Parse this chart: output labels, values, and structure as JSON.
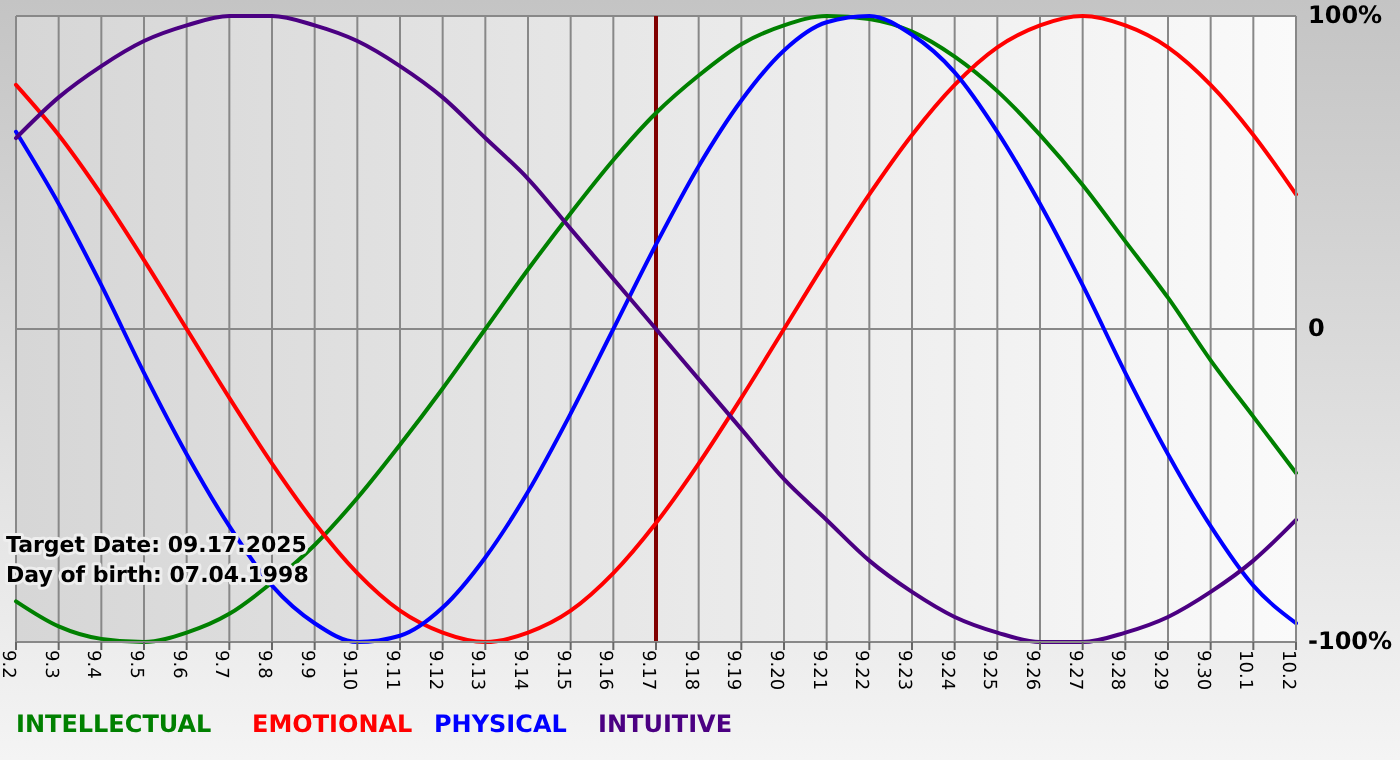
{
  "chart_data": {
    "type": "line",
    "categories": [
      "9.2",
      "9.3",
      "9.4",
      "9.5",
      "9.6",
      "9.7",
      "9.8",
      "9.9",
      "9.10",
      "9.11",
      "9.12",
      "9.13",
      "9.14",
      "9.15",
      "9.16",
      "9.17",
      "9.18",
      "9.19",
      "9.20",
      "9.21",
      "9.22",
      "9.23",
      "9.24",
      "9.25",
      "9.26",
      "9.27",
      "9.28",
      "9.29",
      "9.30",
      "10.1",
      "10.2"
    ],
    "series": [
      {
        "name": "INTELLECTUAL",
        "color": "#008000",
        "values": [
          -87,
          -95,
          -99,
          -100,
          -97,
          -91,
          -81,
          -69,
          -54,
          -37,
          -19,
          0,
          19,
          37,
          54,
          69,
          81,
          91,
          97,
          100,
          99,
          95,
          87,
          76,
          62,
          46,
          28,
          10,
          -10,
          -28,
          -46
        ]
      },
      {
        "name": "EMOTIONAL",
        "color": "#ff0000",
        "values": [
          78,
          62,
          43,
          22,
          0,
          -22,
          -43,
          -62,
          -78,
          -90,
          -97,
          -100,
          -97,
          -90,
          -78,
          -62,
          -43,
          -22,
          0,
          22,
          43,
          62,
          78,
          90,
          97,
          100,
          97,
          90,
          78,
          62,
          43
        ]
      },
      {
        "name": "PHYSICAL",
        "color": "#0000ff",
        "values": [
          63,
          40,
          14,
          -14,
          -40,
          -63,
          -82,
          -94,
          -100,
          -98,
          -89,
          -73,
          -52,
          -27,
          0,
          27,
          52,
          73,
          89,
          98,
          100,
          94,
          82,
          63,
          40,
          14,
          -14,
          -40,
          -63,
          -82,
          -94
        ]
      },
      {
        "name": "INTUITIVE",
        "color": "#4b0082",
        "values": [
          61,
          74,
          84,
          92,
          97,
          100,
          100,
          97,
          92,
          84,
          74,
          61,
          48,
          32,
          16,
          0,
          -16,
          -32,
          -48,
          -61,
          -74,
          -84,
          -92,
          -97,
          -100,
          -100,
          -97,
          -92,
          -84,
          -74,
          -61
        ]
      }
    ],
    "ylim": [
      -100,
      100
    ],
    "yticks": [
      {
        "value": 100,
        "label": "100%"
      },
      0,
      {
        "value": -100,
        "label": "-100%"
      }
    ],
    "grid": true,
    "legend": "bottom",
    "ref_lines": [
      {
        "axis": "x",
        "value": "9.17",
        "color": "#800000"
      }
    ],
    "annotations": [
      "Target Date: 09.17.2025",
      "Day of birth: 07.04.1998"
    ]
  }
}
